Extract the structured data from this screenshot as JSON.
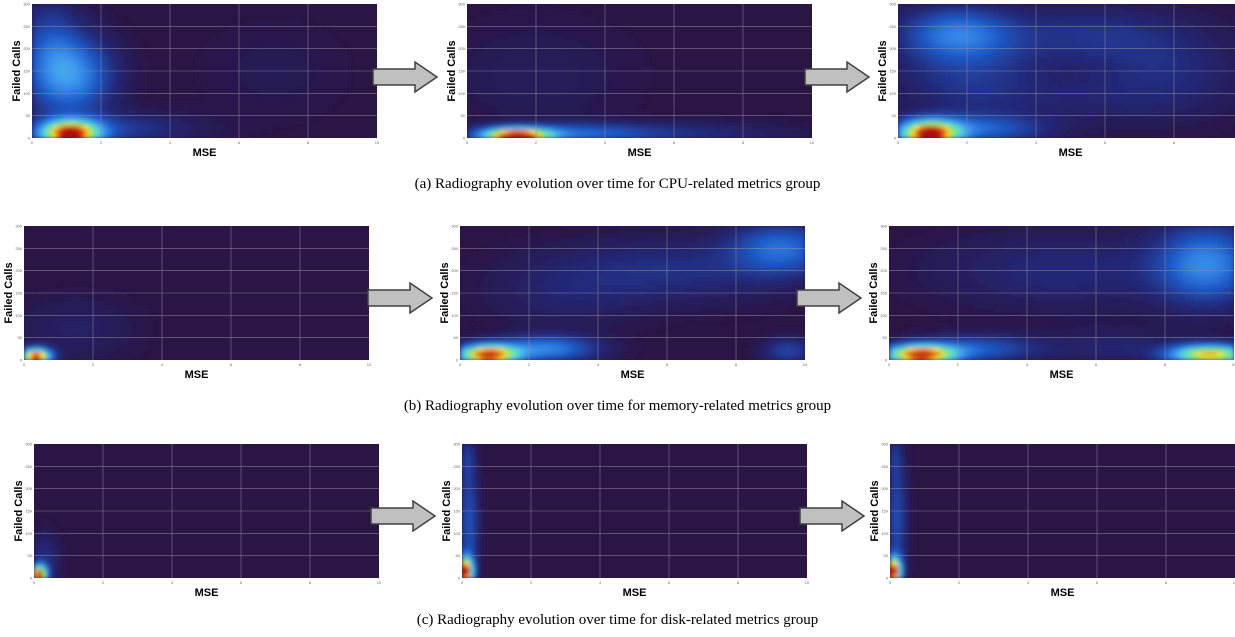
{
  "colors": {
    "background": "#2a1545",
    "grid": "#8c8aa0",
    "arrow_fill": "#c0c0c0",
    "arrow_stroke": "#404040"
  },
  "chart_data": [
    {
      "type": "heatmap",
      "row": 0,
      "xlabel": "MSE",
      "ylabel": "Failed Calls",
      "xlim": [
        0,
        10
      ],
      "ylim": [
        0,
        300
      ],
      "xticks": [
        "0",
        "2",
        "4",
        "6",
        "8",
        "10"
      ],
      "yticks": [
        "0",
        "50",
        "100",
        "150",
        "200",
        "250",
        "300"
      ],
      "blobs": [
        {
          "x": 1.1,
          "y": 10,
          "sx": 0.6,
          "sy": 20,
          "w": 1.0
        },
        {
          "x": 1.2,
          "y": 140,
          "sx": 0.8,
          "sy": 60,
          "w": 0.35
        },
        {
          "x": 0.5,
          "y": 200,
          "sx": 0.6,
          "sy": 80,
          "w": 0.18
        },
        {
          "x": 2.5,
          "y": 20,
          "sx": 1.5,
          "sy": 25,
          "w": 0.15
        },
        {
          "x": 7.0,
          "y": 150,
          "sx": 1.5,
          "sy": 80,
          "w": 0.03
        }
      ]
    },
    {
      "type": "heatmap",
      "row": 0,
      "xlabel": "MSE",
      "ylabel": "Failed Calls",
      "xlim": [
        0,
        10
      ],
      "ylim": [
        0,
        300
      ],
      "xticks": [
        "0",
        "2",
        "4",
        "6",
        "8",
        "10"
      ],
      "yticks": [
        "0",
        "50",
        "100",
        "150",
        "200",
        "250",
        "300"
      ],
      "blobs": [
        {
          "x": 1.4,
          "y": 5,
          "sx": 0.7,
          "sy": 12,
          "w": 1.0
        },
        {
          "x": 3.2,
          "y": 10,
          "sx": 1.5,
          "sy": 15,
          "w": 0.25
        },
        {
          "x": 6.5,
          "y": 10,
          "sx": 2.0,
          "sy": 18,
          "w": 0.1
        },
        {
          "x": 2.0,
          "y": 140,
          "sx": 2.0,
          "sy": 90,
          "w": 0.04
        }
      ]
    },
    {
      "type": "heatmap",
      "row": 0,
      "xlabel": "MSE",
      "ylabel": "Failed Calls",
      "xlim": [
        0,
        10
      ],
      "ylim": [
        0,
        300
      ],
      "xticks": [
        "0",
        "2",
        "4",
        "6",
        "8",
        "10"
      ],
      "yticks": [
        "0",
        "50",
        "100",
        "150",
        "200",
        "250",
        "300"
      ],
      "blobs": [
        {
          "x": 0.9,
          "y": 10,
          "sx": 0.6,
          "sy": 20,
          "w": 1.0
        },
        {
          "x": 2.4,
          "y": 20,
          "sx": 1.3,
          "sy": 22,
          "w": 0.25
        },
        {
          "x": 1.7,
          "y": 235,
          "sx": 1.1,
          "sy": 40,
          "w": 0.28
        },
        {
          "x": 2.0,
          "y": 150,
          "sx": 1.4,
          "sy": 70,
          "w": 0.14
        },
        {
          "x": 5.5,
          "y": 230,
          "sx": 1.8,
          "sy": 45,
          "w": 0.12
        },
        {
          "x": 7.8,
          "y": 150,
          "sx": 1.5,
          "sy": 70,
          "w": 0.1
        },
        {
          "x": 5.0,
          "y": 90,
          "sx": 2.0,
          "sy": 40,
          "w": 0.06
        }
      ]
    },
    {
      "type": "heatmap",
      "row": 1,
      "xlabel": "MSE",
      "ylabel": "Failed Calls",
      "xlim": [
        0,
        10
      ],
      "ylim": [
        0,
        300
      ],
      "xticks": [
        "0",
        "2",
        "4",
        "6",
        "8",
        "10"
      ],
      "yticks": [
        "0",
        "50",
        "100",
        "150",
        "200",
        "250",
        "300"
      ],
      "blobs": [
        {
          "x": 0.35,
          "y": 8,
          "sx": 0.3,
          "sy": 12,
          "w": 1.0
        },
        {
          "x": 1.5,
          "y": 70,
          "sx": 1.2,
          "sy": 50,
          "w": 0.06
        }
      ]
    },
    {
      "type": "heatmap",
      "row": 1,
      "xlabel": "MSE",
      "ylabel": "Failed Calls",
      "xlim": [
        0,
        10
      ],
      "ylim": [
        0,
        300
      ],
      "xticks": [
        "0",
        "2",
        "4",
        "6",
        "8",
        "10"
      ],
      "yticks": [
        "0",
        "50",
        "100",
        "150",
        "200",
        "250",
        "300"
      ],
      "blobs": [
        {
          "x": 0.8,
          "y": 12,
          "sx": 0.6,
          "sy": 15,
          "w": 1.0
        },
        {
          "x": 2.5,
          "y": 25,
          "sx": 1.0,
          "sy": 20,
          "w": 0.35
        },
        {
          "x": 9.3,
          "y": 250,
          "sx": 1.0,
          "sy": 40,
          "w": 0.28
        },
        {
          "x": 6.0,
          "y": 200,
          "sx": 2.5,
          "sy": 50,
          "w": 0.12
        },
        {
          "x": 9.5,
          "y": 20,
          "sx": 0.5,
          "sy": 20,
          "w": 0.18
        },
        {
          "x": 3.0,
          "y": 140,
          "sx": 1.5,
          "sy": 50,
          "w": 0.06
        }
      ]
    },
    {
      "type": "heatmap",
      "row": 1,
      "xlabel": "MSE",
      "ylabel": "Failed Calls",
      "xlim": [
        0,
        10
      ],
      "ylim": [
        0,
        300
      ],
      "xticks": [
        "0",
        "2",
        "4",
        "6",
        "8",
        "10"
      ],
      "yticks": [
        "0",
        "50",
        "100",
        "150",
        "200",
        "250",
        "300"
      ],
      "blobs": [
        {
          "x": 0.9,
          "y": 12,
          "sx": 0.7,
          "sy": 15,
          "w": 1.0
        },
        {
          "x": 9.3,
          "y": 12,
          "sx": 0.8,
          "sy": 15,
          "w": 0.85
        },
        {
          "x": 9.2,
          "y": 215,
          "sx": 1.0,
          "sy": 60,
          "w": 0.35
        },
        {
          "x": 5.0,
          "y": 200,
          "sx": 2.5,
          "sy": 60,
          "w": 0.1
        },
        {
          "x": 2.5,
          "y": 25,
          "sx": 1.2,
          "sy": 20,
          "w": 0.25
        },
        {
          "x": 6.5,
          "y": 30,
          "sx": 1.5,
          "sy": 25,
          "w": 0.08
        }
      ]
    },
    {
      "type": "heatmap",
      "row": 2,
      "xlabel": "MSE",
      "ylabel": "Failed Calls",
      "xlim": [
        0,
        10
      ],
      "ylim": [
        0,
        300
      ],
      "xticks": [
        "0",
        "2",
        "4",
        "6",
        "8",
        "10"
      ],
      "yticks": [
        "0",
        "50",
        "100",
        "150",
        "200",
        "250",
        "300"
      ],
      "blobs": [
        {
          "x": 0.15,
          "y": 8,
          "sx": 0.15,
          "sy": 14,
          "w": 1.0
        },
        {
          "x": 0.3,
          "y": 40,
          "sx": 0.3,
          "sy": 40,
          "w": 0.12
        }
      ]
    },
    {
      "type": "heatmap",
      "row": 2,
      "xlabel": "MSE",
      "ylabel": "Failed Calls",
      "xlim": [
        0,
        10
      ],
      "ylim": [
        0,
        300
      ],
      "xticks": [
        "0",
        "2",
        "4",
        "6",
        "8",
        "10"
      ],
      "yticks": [
        "0",
        "50",
        "100",
        "150",
        "200",
        "250",
        "300"
      ],
      "blobs": [
        {
          "x": 0.1,
          "y": 15,
          "sx": 0.15,
          "sy": 22,
          "w": 1.0
        },
        {
          "x": 0.2,
          "y": 120,
          "sx": 0.2,
          "sy": 90,
          "w": 0.22
        },
        {
          "x": 0.15,
          "y": 270,
          "sx": 0.15,
          "sy": 40,
          "w": 0.12
        }
      ]
    },
    {
      "type": "heatmap",
      "row": 2,
      "xlabel": "MSE",
      "ylabel": "Failed Calls",
      "xlim": [
        0,
        10
      ],
      "ylim": [
        0,
        300
      ],
      "xticks": [
        "0",
        "2",
        "4",
        "6",
        "8",
        "10"
      ],
      "yticks": [
        "0",
        "50",
        "100",
        "150",
        "200",
        "250",
        "300"
      ],
      "blobs": [
        {
          "x": 0.1,
          "y": 15,
          "sx": 0.15,
          "sy": 22,
          "w": 1.0
        },
        {
          "x": 0.2,
          "y": 130,
          "sx": 0.2,
          "sy": 90,
          "w": 0.2
        },
        {
          "x": 0.15,
          "y": 270,
          "sx": 0.15,
          "sy": 40,
          "w": 0.1
        }
      ]
    }
  ],
  "captions": [
    "(a) Radiography evolution over time for CPU-related metrics group",
    "(b) Radiography evolution over time for memory-related metrics group",
    "(c) Radiography evolution over time for disk-related metrics group"
  ]
}
